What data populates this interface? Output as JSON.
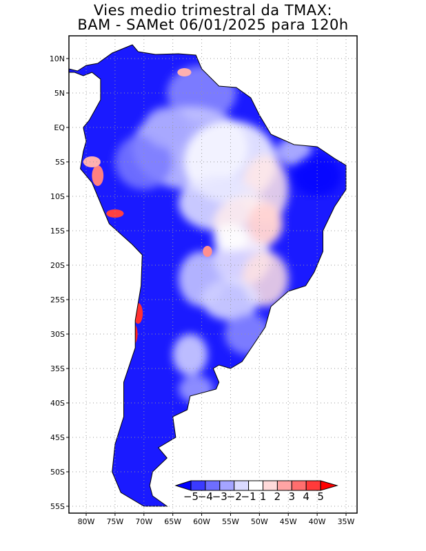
{
  "title": {
    "line1": "Vies medio trimestral da TMAX:",
    "line2": "BAM - SAMet 06/01/2025  para 120h"
  },
  "lat_ticks": [
    {
      "lat": 10,
      "label": "10N"
    },
    {
      "lat": 5,
      "label": "5N"
    },
    {
      "lat": 0,
      "label": "EQ"
    },
    {
      "lat": -5,
      "label": "5S"
    },
    {
      "lat": -10,
      "label": "10S"
    },
    {
      "lat": -15,
      "label": "15S"
    },
    {
      "lat": -20,
      "label": "20S"
    },
    {
      "lat": -25,
      "label": "25S"
    },
    {
      "lat": -30,
      "label": "30S"
    },
    {
      "lat": -35,
      "label": "35S"
    },
    {
      "lat": -40,
      "label": "40S"
    },
    {
      "lat": -45,
      "label": "45S"
    },
    {
      "lat": -50,
      "label": "50S"
    },
    {
      "lat": -55,
      "label": "55S"
    }
  ],
  "lon_ticks": [
    {
      "lon": -80,
      "label": "80W"
    },
    {
      "lon": -75,
      "label": "75W"
    },
    {
      "lon": -70,
      "label": "70W"
    },
    {
      "lon": -65,
      "label": "65W"
    },
    {
      "lon": -60,
      "label": "60W"
    },
    {
      "lon": -55,
      "label": "55W"
    },
    {
      "lon": -50,
      "label": "50W"
    },
    {
      "lon": -45,
      "label": "45W"
    },
    {
      "lon": -40,
      "label": "40W"
    },
    {
      "lon": -35,
      "label": "35W"
    }
  ],
  "colorbar": {
    "labels": [
      "-5",
      "-4",
      "-3",
      "-2",
      "-1",
      "1",
      "2",
      "3",
      "4",
      "5"
    ],
    "colors": [
      "#0000ff",
      "#3a3aff",
      "#6e6eff",
      "#a4a4ff",
      "#dadaff",
      "#ffffff",
      "#ffdada",
      "#ffa4a4",
      "#ff6e6e",
      "#ff3a3a",
      "#ff0000"
    ]
  }
}
